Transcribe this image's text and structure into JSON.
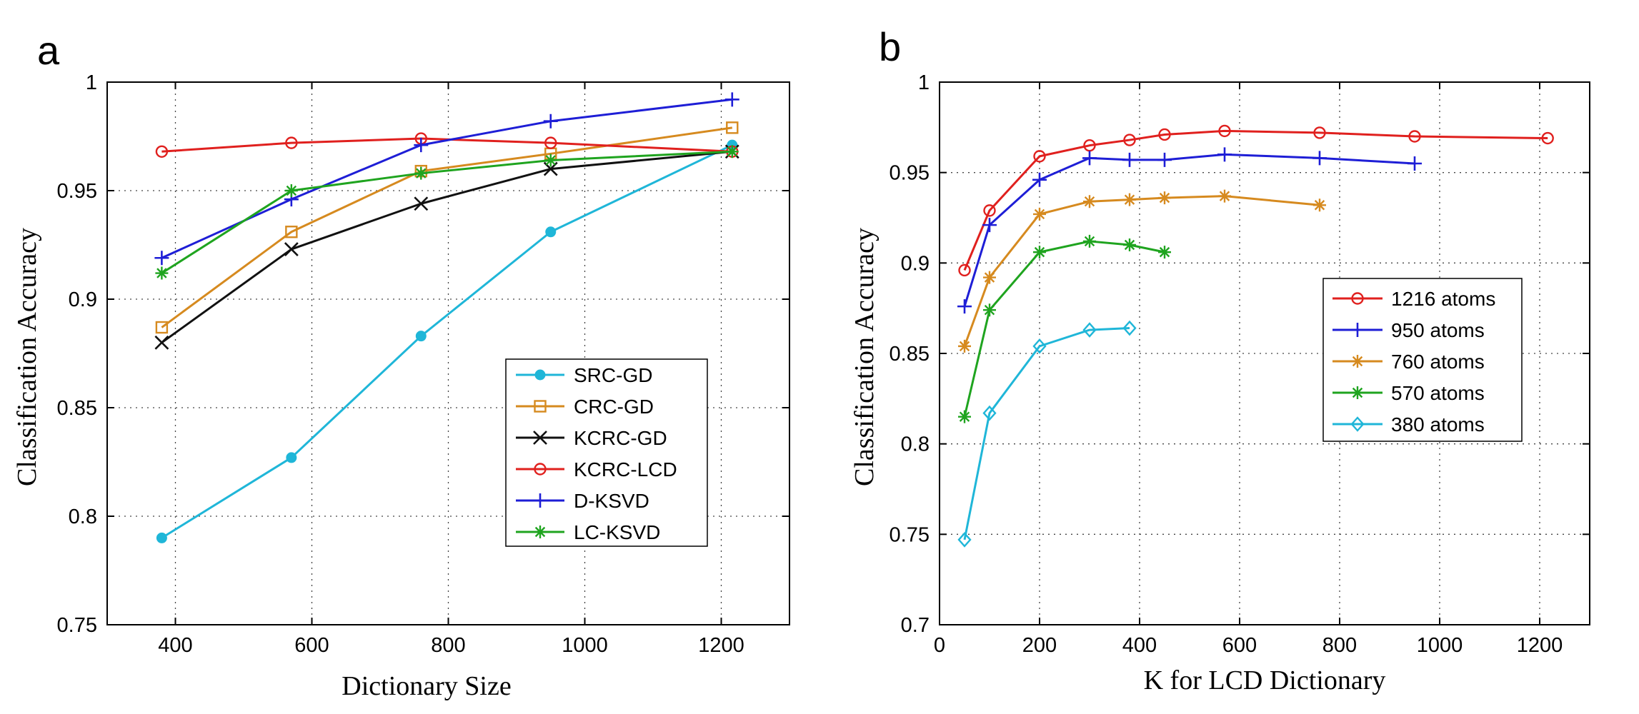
{
  "chart_data": [
    {
      "panel_label": "a",
      "type": "line",
      "xlabel": "Dictionary Size",
      "ylabel": "Classification Accuracy",
      "xlim": [
        300,
        1300
      ],
      "ylim": [
        0.75,
        1
      ],
      "xticks": [
        400,
        600,
        800,
        1000,
        1200
      ],
      "yticks": [
        0.75,
        0.8,
        0.85,
        0.9,
        0.95,
        1
      ],
      "ytick_labels": [
        "0.75",
        "0.8",
        "0.85",
        "0.9",
        "0.95",
        "1"
      ],
      "grid": true,
      "legend_position": "bottom-right",
      "x": [
        380,
        570,
        760,
        950,
        1216
      ],
      "series": [
        {
          "name": "SRC-GD",
          "color": "#1fb6d8",
          "marker": "dot",
          "values": [
            0.79,
            0.827,
            0.883,
            0.931,
            0.971
          ]
        },
        {
          "name": "CRC-GD",
          "color": "#d68a1f",
          "marker": "square",
          "values": [
            0.887,
            0.931,
            0.959,
            0.967,
            0.979
          ]
        },
        {
          "name": "KCRC-GD",
          "color": "#111111",
          "marker": "x",
          "values": [
            0.88,
            0.923,
            0.944,
            0.96,
            0.968
          ]
        },
        {
          "name": "KCRC-LCD",
          "color": "#e0201e",
          "marker": "circle",
          "values": [
            0.968,
            0.972,
            0.974,
            0.972,
            0.968
          ]
        },
        {
          "name": "D-KSVD",
          "color": "#1e1ed6",
          "marker": "plus",
          "values": [
            0.919,
            0.946,
            0.971,
            0.982,
            0.992
          ]
        },
        {
          "name": "LC-KSVD",
          "color": "#1fa41f",
          "marker": "star",
          "values": [
            0.912,
            0.95,
            0.958,
            0.964,
            0.968
          ]
        }
      ]
    },
    {
      "panel_label": "b",
      "type": "line",
      "xlabel": "K for LCD Dictionary",
      "ylabel": "Classification Accuracy",
      "xlim": [
        0,
        1300
      ],
      "ylim": [
        0.7,
        1
      ],
      "xticks": [
        0,
        200,
        400,
        600,
        800,
        1000,
        1200
      ],
      "yticks": [
        0.7,
        0.75,
        0.8,
        0.85,
        0.9,
        0.95,
        1
      ],
      "ytick_labels": [
        "0.7",
        "0.75",
        "0.8",
        "0.85",
        "0.9",
        "0.95",
        "1"
      ],
      "grid": true,
      "legend_position": "center-right",
      "series": [
        {
          "name": "1216 atoms",
          "color": "#e0201e",
          "marker": "circle",
          "x": [
            50,
            100,
            200,
            300,
            380,
            450,
            570,
            760,
            950,
            1216
          ],
          "values": [
            0.896,
            0.929,
            0.959,
            0.965,
            0.968,
            0.971,
            0.973,
            0.972,
            0.97,
            0.969
          ]
        },
        {
          "name": "950 atoms",
          "color": "#1e1ed6",
          "marker": "plus",
          "x": [
            50,
            100,
            200,
            300,
            380,
            450,
            570,
            760,
            950
          ],
          "values": [
            0.876,
            0.921,
            0.946,
            0.958,
            0.957,
            0.957,
            0.96,
            0.958,
            0.955
          ]
        },
        {
          "name": "760 atoms",
          "color": "#d68a1f",
          "marker": "star",
          "x": [
            50,
            100,
            200,
            300,
            380,
            450,
            570,
            760
          ],
          "values": [
            0.854,
            0.892,
            0.927,
            0.934,
            0.935,
            0.936,
            0.937,
            0.932
          ]
        },
        {
          "name": "570 atoms",
          "color": "#1fa41f",
          "marker": "star",
          "x": [
            50,
            100,
            200,
            300,
            380,
            450
          ],
          "values": [
            0.815,
            0.874,
            0.906,
            0.912,
            0.91,
            0.906
          ]
        },
        {
          "name": "380 atoms",
          "color": "#1fb6d8",
          "marker": "diamond",
          "x": [
            50,
            100,
            200,
            300,
            380
          ],
          "values": [
            0.747,
            0.817,
            0.854,
            0.863,
            0.864
          ]
        }
      ]
    }
  ]
}
